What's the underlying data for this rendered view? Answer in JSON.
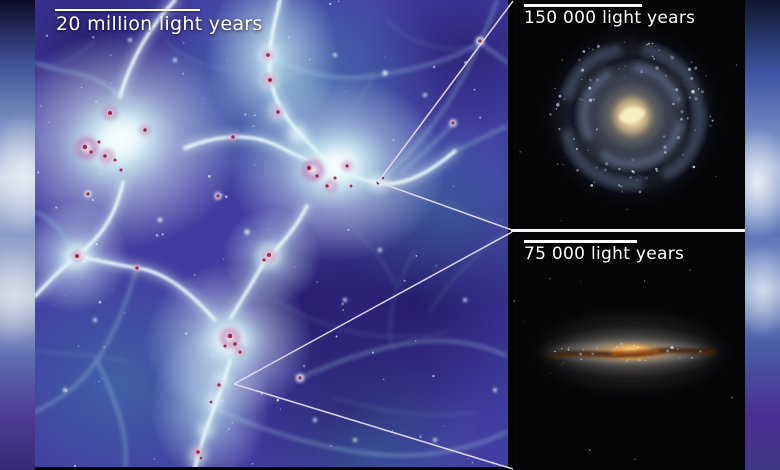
{
  "panels": {
    "cosmic_web": {
      "scale_label": "20 million light years"
    },
    "galaxy_face_on": {
      "scale_label": "150 000 light years"
    },
    "galaxy_edge_on": {
      "scale_label": "75 000 light years"
    }
  },
  "colors": {
    "label_text": "#ffffff",
    "scale_bar": "#ffffff",
    "zoom_guide_line": "#e6ddf2",
    "panel_divider": "#f4f4f4",
    "void_indigo": "#2a1c6e",
    "intergalactic_teal": "#4898ba",
    "filament_cyan": "#d8f4f8",
    "cluster_magenta": "#bd72b4",
    "cluster_red": "#8c1c36",
    "galaxy_core_gold": "#f0dfa8",
    "dust_lane_brown": "#5a2414",
    "inset_background": "#050508"
  }
}
